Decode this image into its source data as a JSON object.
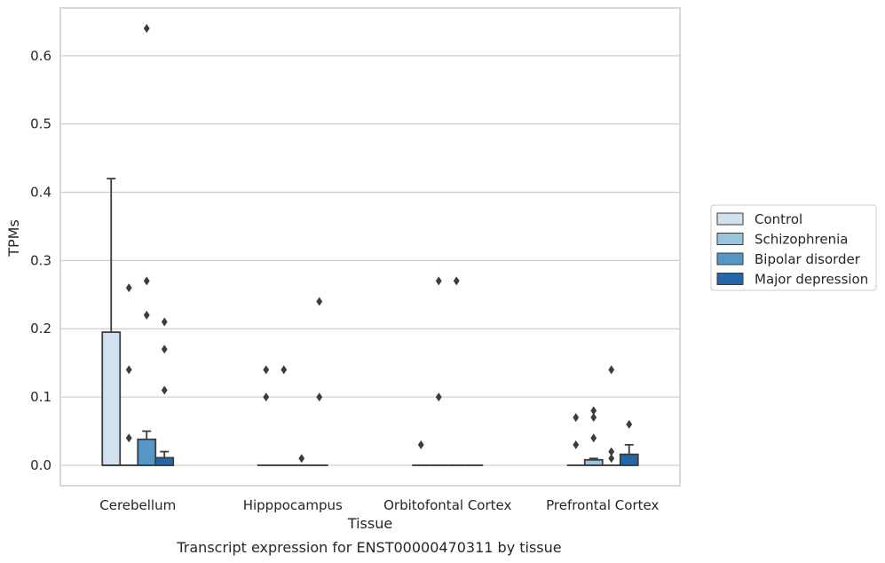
{
  "caption": "Transcript expression for ENST00000470311 by tissue",
  "chart_data": {
    "type": "bar",
    "style": "boxplot",
    "xlabel": "Tissue",
    "ylabel": "TPMs",
    "categories": [
      "Cerebellum",
      "Hipppocampus",
      "Orbitofontal Cortex",
      "Prefrontal Cortex"
    ],
    "ylim": [
      -0.03,
      0.67
    ],
    "yticks": [
      "0.0",
      "0.1",
      "0.2",
      "0.3",
      "0.4",
      "0.5",
      "0.6"
    ],
    "grid": "horizontal",
    "legend_position": "right",
    "series": [
      {
        "name": "Control",
        "color": "#d2e1f0",
        "boxes": [
          {
            "q1": 0.0,
            "q3": 0.195,
            "median": 0.0,
            "whisker_low": 0.0,
            "whisker_high": 0.42,
            "outliers": []
          },
          {
            "q1": 0.0,
            "q3": 0.0,
            "median": 0.0,
            "whisker_low": 0.0,
            "whisker_high": 0.0,
            "outliers": [
              0.14,
              0.1
            ]
          },
          {
            "q1": 0.0,
            "q3": 0.0,
            "median": 0.0,
            "whisker_low": 0.0,
            "whisker_high": 0.0,
            "outliers": [
              0.03
            ]
          },
          {
            "q1": 0.0,
            "q3": 0.0,
            "median": 0.0,
            "whisker_low": 0.0,
            "whisker_high": 0.0,
            "outliers": [
              0.07,
              0.03
            ]
          }
        ]
      },
      {
        "name": "Schizophrenia",
        "color": "#9ac4dd",
        "boxes": [
          {
            "q1": 0.0,
            "q3": 0.0,
            "median": 0.0,
            "whisker_low": 0.0,
            "whisker_high": 0.0,
            "outliers": [
              0.26,
              0.14,
              0.04
            ]
          },
          {
            "q1": 0.0,
            "q3": 0.0,
            "median": 0.0,
            "whisker_low": 0.0,
            "whisker_high": 0.0,
            "outliers": [
              0.14
            ]
          },
          {
            "q1": 0.0,
            "q3": 0.0,
            "median": 0.0,
            "whisker_low": 0.0,
            "whisker_high": 0.0,
            "outliers": [
              0.27,
              0.1
            ]
          },
          {
            "q1": 0.0,
            "q3": 0.008,
            "median": 0.0,
            "whisker_low": 0.0,
            "whisker_high": 0.01,
            "outliers": [
              0.08,
              0.07,
              0.04
            ]
          }
        ]
      },
      {
        "name": "Bipolar disorder",
        "color": "#5496c7",
        "boxes": [
          {
            "q1": 0.0,
            "q3": 0.038,
            "median": 0.0,
            "whisker_low": 0.0,
            "whisker_high": 0.05,
            "outliers": [
              0.64,
              0.27,
              0.22
            ]
          },
          {
            "q1": 0.0,
            "q3": 0.0,
            "median": 0.0,
            "whisker_low": 0.0,
            "whisker_high": 0.0,
            "outliers": [
              0.01
            ]
          },
          {
            "q1": 0.0,
            "q3": 0.0,
            "median": 0.0,
            "whisker_low": 0.0,
            "whisker_high": 0.0,
            "outliers": [
              0.27
            ]
          },
          {
            "q1": 0.0,
            "q3": 0.0,
            "median": 0.0,
            "whisker_low": 0.0,
            "whisker_high": 0.0,
            "outliers": [
              0.14,
              0.02,
              0.01
            ]
          }
        ]
      },
      {
        "name": "Major depression",
        "color": "#2566a8",
        "boxes": [
          {
            "q1": 0.0,
            "q3": 0.011,
            "median": 0.0,
            "whisker_low": 0.0,
            "whisker_high": 0.02,
            "outliers": [
              0.21,
              0.17,
              0.11
            ]
          },
          {
            "q1": 0.0,
            "q3": 0.0,
            "median": 0.0,
            "whisker_low": 0.0,
            "whisker_high": 0.0,
            "outliers": [
              0.24,
              0.1
            ]
          },
          {
            "q1": 0.0,
            "q3": 0.0,
            "median": 0.0,
            "whisker_low": 0.0,
            "whisker_high": 0.0,
            "outliers": []
          },
          {
            "q1": 0.0,
            "q3": 0.016,
            "median": 0.0,
            "whisker_low": 0.0,
            "whisker_high": 0.03,
            "outliers": [
              0.06
            ]
          }
        ]
      }
    ]
  }
}
